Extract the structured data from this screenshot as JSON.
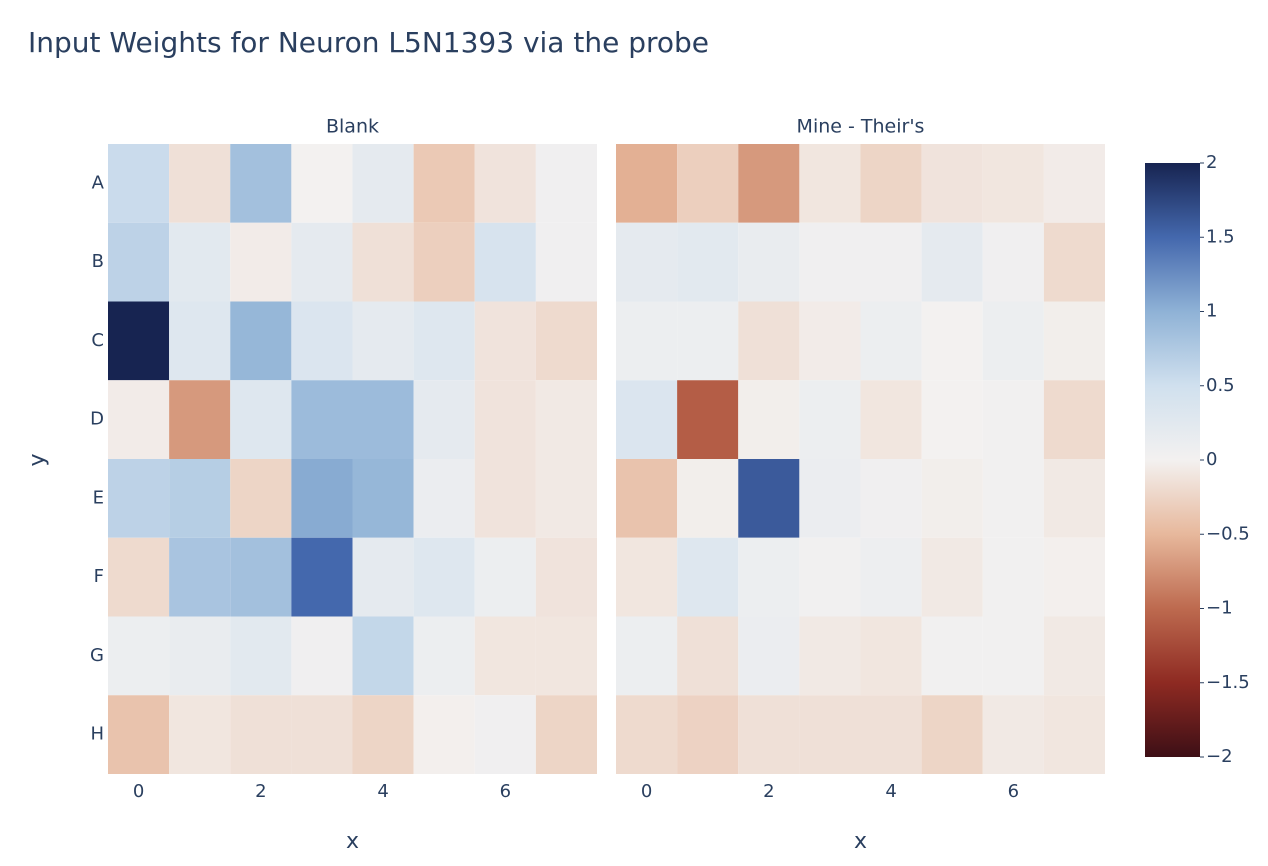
{
  "chart_data": {
    "type": "heatmap",
    "title": "Input Weights for Neuron L5N1393 via the probe",
    "x_label": "x",
    "y_label": "y",
    "y_categories": [
      "A",
      "B",
      "C",
      "D",
      "E",
      "F",
      "G",
      "H"
    ],
    "xlim": [
      -0.5,
      7.5
    ],
    "xticks": [
      0,
      2,
      4,
      6
    ],
    "zlim": [
      -2,
      2
    ],
    "zticks": [
      2,
      1.5,
      1,
      0.5,
      0,
      {
        "value": -0.5,
        "label": "−0.5"
      },
      {
        "value": -1,
        "label": "−1"
      },
      {
        "value": -1.5,
        "label": "−1.5"
      },
      {
        "value": -2,
        "label": "−2"
      }
    ],
    "colorscale": [
      [
        -2,
        "#3d0f16"
      ],
      [
        -1.5,
        "#8e2a22"
      ],
      [
        -1,
        "#bd6a4f"
      ],
      [
        -0.5,
        "#e7b89c"
      ],
      [
        0,
        "#f3f1f0"
      ],
      [
        0.5,
        "#d0e0ee"
      ],
      [
        1,
        "#8fb2d6"
      ],
      [
        1.5,
        "#4468ad"
      ],
      [
        2,
        "#172451"
      ]
    ],
    "panels": [
      {
        "subtitle": "Blank",
        "z": [
          [
            0.55,
            -0.15,
            0.85,
            0.0,
            0.2,
            -0.35,
            -0.12,
            0.05
          ],
          [
            0.65,
            0.25,
            -0.05,
            0.2,
            -0.15,
            -0.3,
            0.4,
            0.05
          ],
          [
            2.0,
            0.3,
            0.95,
            0.35,
            0.2,
            0.3,
            -0.12,
            -0.2
          ],
          [
            -0.05,
            -0.7,
            0.3,
            0.9,
            0.9,
            0.2,
            -0.12,
            -0.07
          ],
          [
            0.65,
            0.7,
            -0.25,
            1.05,
            0.95,
            0.12,
            -0.12,
            -0.07
          ],
          [
            -0.2,
            0.8,
            0.85,
            1.5,
            0.2,
            0.3,
            0.1,
            -0.12
          ],
          [
            0.1,
            0.15,
            0.25,
            0.05,
            0.6,
            0.1,
            -0.1,
            -0.1
          ],
          [
            -0.4,
            -0.1,
            -0.15,
            -0.15,
            -0.25,
            -0.02,
            0.05,
            -0.25
          ]
        ]
      },
      {
        "subtitle": "Mine - Their's",
        "z": [
          [
            -0.55,
            -0.3,
            -0.7,
            -0.1,
            -0.25,
            -0.12,
            -0.1,
            -0.05
          ],
          [
            0.2,
            0.25,
            0.15,
            0.05,
            0.05,
            0.2,
            0.05,
            -0.2
          ],
          [
            0.1,
            0.1,
            -0.15,
            -0.05,
            0.1,
            0.0,
            0.1,
            -0.03
          ],
          [
            0.35,
            -1.1,
            -0.03,
            0.1,
            -0.1,
            0.0,
            0.03,
            -0.2
          ],
          [
            -0.4,
            -0.03,
            1.6,
            0.12,
            0.05,
            -0.03,
            0.03,
            -0.07
          ],
          [
            -0.1,
            0.3,
            0.1,
            0.03,
            0.08,
            -0.07,
            0.03,
            -0.02
          ],
          [
            0.1,
            -0.15,
            0.12,
            -0.07,
            -0.1,
            0.03,
            0.03,
            -0.07
          ],
          [
            -0.2,
            -0.27,
            -0.15,
            -0.15,
            -0.15,
            -0.25,
            -0.07,
            -0.1
          ]
        ]
      }
    ]
  }
}
